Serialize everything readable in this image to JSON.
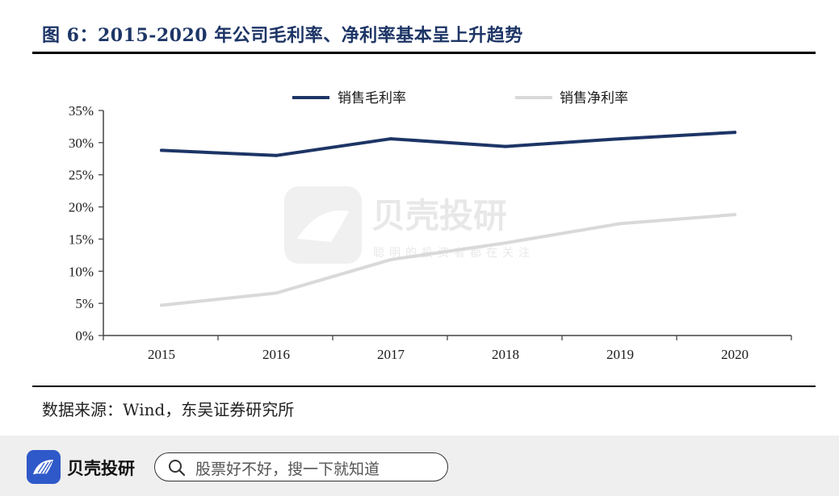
{
  "header": {
    "title": "图 6：2015-2020 年公司毛利率、净利率基本呈上升趋势"
  },
  "chart_data": {
    "type": "line",
    "categories": [
      "2015",
      "2016",
      "2017",
      "2018",
      "2019",
      "2020"
    ],
    "series": [
      {
        "name": "销售毛利率",
        "values": [
          28.8,
          28.0,
          30.6,
          29.4,
          30.6,
          31.6
        ],
        "color": "#1d3566"
      },
      {
        "name": "销售净利率",
        "values": [
          4.7,
          6.6,
          11.8,
          14.4,
          17.4,
          18.8
        ],
        "color": "#d9d9d9"
      }
    ],
    "ylim": [
      0,
      35
    ],
    "yticks": [
      "0%",
      "5%",
      "10%",
      "15%",
      "20%",
      "25%",
      "30%",
      "35%"
    ],
    "grid": false,
    "legend_position": "top-center"
  },
  "watermark": {
    "name": "贝壳投研",
    "slogan": "聪明的投资者都在关注"
  },
  "footer": {
    "source": "数据来源：Wind，东吴证券研究所"
  },
  "bottom_bar": {
    "brand_name": "贝壳投研",
    "search_placeholder": "股票好不好，搜一下就知道",
    "brand_color": "#2f59c9"
  }
}
